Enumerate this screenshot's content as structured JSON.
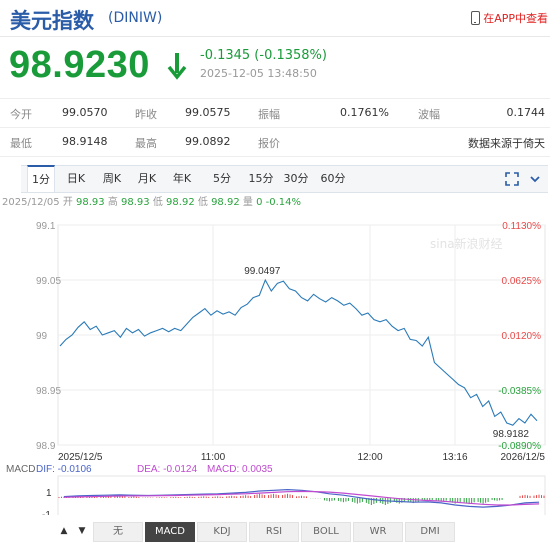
{
  "header": {
    "title": "美元指数",
    "code": "(DINIW)",
    "app_label": "在APP中查看"
  },
  "quote": {
    "price": "98.9230",
    "change": "-0.1345 (-0.1358%)",
    "time": "2025-12-05 13:48:50"
  },
  "stats": [
    [
      {
        "label": "今开",
        "value": "99.0570"
      },
      {
        "label": "昨收",
        "value": "99.0575"
      },
      {
        "label": "振幅",
        "value": "0.1761%"
      },
      {
        "label": "波幅",
        "value": "0.1744"
      }
    ],
    [
      {
        "label": "最低",
        "value": "98.9148"
      },
      {
        "label": "最高",
        "value": "99.0892"
      },
      {
        "label": "报价",
        "value": "数据来源于倚天"
      }
    ]
  ],
  "tabs": [
    "1分",
    "日K",
    "周K",
    "月K",
    "年K",
    "5分",
    "15分",
    "30分",
    "60分"
  ],
  "active_tab": "1分",
  "ohlc": {
    "date": "2025/12/05",
    "items": [
      {
        "label": "开",
        "value": "98.93"
      },
      {
        "label": "高",
        "value": "98.93"
      },
      {
        "label": "低",
        "value": "98.92"
      },
      {
        "label": "低",
        "value": "98.92"
      },
      {
        "label": "量",
        "value": "0"
      },
      {
        "label": "",
        "value": "-0.14%"
      }
    ]
  },
  "colors": {
    "up": "#e84a4a",
    "down": "#2aa33e",
    "line": "#2a7ab8",
    "brand": "#2a5ca8"
  },
  "chart_data": {
    "type": "line",
    "ylim": [
      98.9,
      99.1
    ],
    "y_ticks": [
      "99.1",
      "99.05",
      "99",
      "98.95",
      "98.9"
    ],
    "right_ticks": [
      {
        "label": "0.1130%",
        "dir": "up"
      },
      {
        "label": "0.0625%",
        "dir": "up"
      },
      {
        "label": "0.0120%",
        "dir": "up"
      },
      {
        "label": "-0.0385%",
        "dir": "down"
      },
      {
        "label": "-0.0890%",
        "dir": "down"
      }
    ],
    "x_ticks": [
      "2025/12/5",
      "11:00",
      "12:00",
      "13:16",
      "2026/12/5"
    ],
    "max_label": "99.0497",
    "min_label": "98.9182",
    "watermark": "sina新浪财经",
    "values": [
      98.99,
      98.996,
      99.0,
      99.007,
      99.012,
      99.005,
      99.008,
      99.0,
      99.002,
      99.004,
      98.998,
      99.006,
      99.002,
      99.005,
      98.999,
      99.002,
      99.004,
      99.006,
      99.003,
      99.006,
      99.004,
      99.01,
      99.016,
      99.02,
      99.024,
      99.018,
      99.022,
      99.019,
      99.021,
      99.018,
      99.025,
      99.028,
      99.034,
      99.036,
      99.05,
      99.04,
      99.047,
      99.049,
      99.042,
      99.04,
      99.034,
      99.031,
      99.037,
      99.033,
      99.03,
      99.034,
      99.031,
      99.027,
      99.029,
      99.024,
      99.018,
      99.02,
      99.014,
      99.012,
      99.014,
      99.008,
      99.004,
      99.006,
      98.996,
      98.995,
      98.99,
      98.998,
      98.975,
      98.97,
      98.965,
      98.96,
      98.955,
      98.952,
      98.943,
      98.946,
      98.935,
      98.94,
      98.926,
      98.93,
      98.92,
      98.918,
      98.924,
      98.92,
      98.928,
      98.922
    ]
  },
  "macd": {
    "label": "MACD",
    "dif": "DIF: -0.0106",
    "dea": "DEA: -0.0124",
    "macd": "MACD: 0.0035",
    "y_ticks": [
      "1",
      "-1"
    ],
    "dif_values": [
      0.1,
      0.15,
      0.18,
      0.2,
      0.22,
      0.2,
      0.18,
      0.2,
      0.22,
      0.25,
      0.28,
      0.3,
      0.35,
      0.4,
      0.5,
      0.55,
      0.6,
      0.55,
      0.45,
      0.3,
      0.2,
      0.05,
      -0.1,
      -0.2,
      -0.25,
      -0.3,
      -0.28,
      -0.35,
      -0.5,
      -0.6,
      -0.65,
      -0.6,
      -0.5,
      -0.35,
      -0.3
    ],
    "dea_values": [
      0.05,
      0.08,
      0.1,
      0.12,
      0.14,
      0.15,
      0.16,
      0.17,
      0.18,
      0.2,
      0.22,
      0.24,
      0.27,
      0.3,
      0.35,
      0.4,
      0.45,
      0.47,
      0.46,
      0.42,
      0.35,
      0.25,
      0.15,
      0.05,
      -0.05,
      -0.12,
      -0.18,
      -0.22,
      -0.3,
      -0.38,
      -0.45,
      -0.5,
      -0.5,
      -0.46,
      -0.42
    ]
  },
  "bottom": {
    "nav": [
      "▲",
      "▼"
    ],
    "indicators": [
      "无",
      "MACD",
      "KDJ",
      "RSI",
      "BOLL",
      "WR",
      "DMI"
    ],
    "active": "MACD"
  }
}
